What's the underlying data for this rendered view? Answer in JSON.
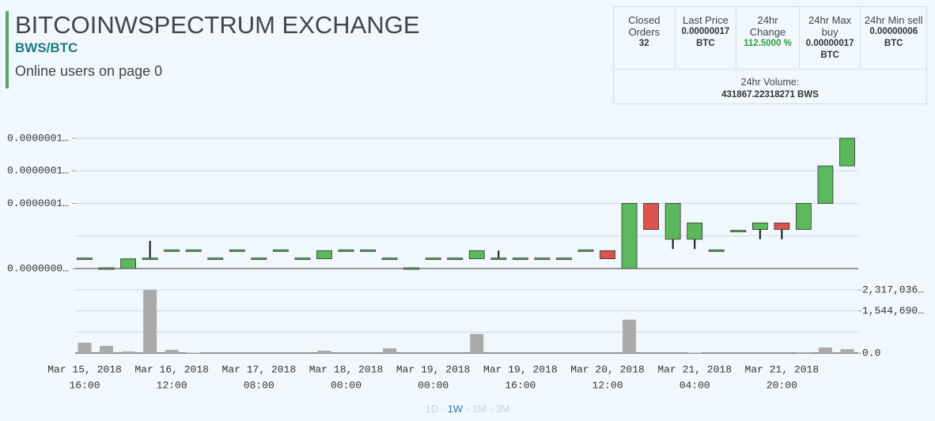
{
  "header": {
    "title": "BITCOINWSPECTRUM EXCHANGE",
    "pair": "BWS/BTC",
    "online": "Online users on page 0"
  },
  "stats": {
    "cells": [
      {
        "label": "Closed Orders",
        "value": "32"
      },
      {
        "label": "Last Price",
        "value": "0.00000017 BTC"
      },
      {
        "label": "24hr Change",
        "value": "112.5000 %"
      },
      {
        "label": "24hr Max buy",
        "value": "0.00000017 BTC"
      },
      {
        "label": "24hr Min sell",
        "value": "0.00000006 BTC"
      }
    ],
    "volume_label": "24hr Volume:",
    "volume_value": "431867.22318271 BWS"
  },
  "chart_data": {
    "type": "candlestick",
    "categories": [
      {
        "date": "Mar 15, 2018",
        "time": "16:00"
      },
      null,
      null,
      null,
      {
        "date": "Mar 16, 2018",
        "time": "12:00"
      },
      null,
      null,
      null,
      {
        "date": "Mar 17, 2018",
        "time": "08:00"
      },
      null,
      null,
      null,
      {
        "date": "Mar 18, 2018",
        "time": "00:00"
      },
      null,
      null,
      null,
      {
        "date": "Mar 19, 2018",
        "time": "00:00"
      },
      null,
      null,
      null,
      {
        "date": "Mar 19, 2018",
        "time": "16:00"
      },
      null,
      null,
      null,
      {
        "date": "Mar 20, 2018",
        "time": "12:00"
      },
      null,
      null,
      null,
      {
        "date": "Mar 21, 2018",
        "time": "04:00"
      },
      null,
      null,
      null,
      {
        "date": "Mar 21, 2018",
        "time": "20:00"
      },
      null,
      null,
      null
    ],
    "candles": [
      {
        "open": 8.6e-08,
        "high": 8.6e-08,
        "low": 8.6e-08,
        "close": 8.6e-08
      },
      {
        "open": 8e-08,
        "high": 8e-08,
        "low": 8e-08,
        "close": 8e-08
      },
      {
        "open": 8e-08,
        "high": 8.6e-08,
        "low": 8e-08,
        "close": 8.6e-08
      },
      {
        "open": 8.6e-08,
        "high": 9.7e-08,
        "low": 8.6e-08,
        "close": 8.6e-08
      },
      {
        "open": 9.1e-08,
        "high": 9.1e-08,
        "low": 9.1e-08,
        "close": 9.1e-08
      },
      {
        "open": 9.1e-08,
        "high": 9.1e-08,
        "low": 9.1e-08,
        "close": 9.1e-08
      },
      {
        "open": 8.6e-08,
        "high": 8.6e-08,
        "low": 8.6e-08,
        "close": 8.6e-08
      },
      {
        "open": 9.1e-08,
        "high": 9.1e-08,
        "low": 9.1e-08,
        "close": 9.1e-08
      },
      {
        "open": 8.6e-08,
        "high": 8.6e-08,
        "low": 8.6e-08,
        "close": 8.6e-08
      },
      {
        "open": 9.1e-08,
        "high": 9.1e-08,
        "low": 9.1e-08,
        "close": 9.1e-08
      },
      {
        "open": 8.6e-08,
        "high": 8.6e-08,
        "low": 8.6e-08,
        "close": 8.6e-08
      },
      {
        "open": 8.6e-08,
        "high": 9.1e-08,
        "low": 8.6e-08,
        "close": 9.1e-08
      },
      {
        "open": 9.1e-08,
        "high": 9.1e-08,
        "low": 9.1e-08,
        "close": 9.1e-08
      },
      {
        "open": 9.1e-08,
        "high": 9.1e-08,
        "low": 9.1e-08,
        "close": 9.1e-08
      },
      {
        "open": 8.6e-08,
        "high": 8.6e-08,
        "low": 8.6e-08,
        "close": 8.6e-08
      },
      {
        "open": 8e-08,
        "high": 8e-08,
        "low": 8e-08,
        "close": 8e-08
      },
      {
        "open": 8.6e-08,
        "high": 8.6e-08,
        "low": 8.6e-08,
        "close": 8.6e-08
      },
      {
        "open": 8.6e-08,
        "high": 8.6e-08,
        "low": 8.6e-08,
        "close": 8.6e-08
      },
      {
        "open": 8.6e-08,
        "high": 9.1e-08,
        "low": 8.6e-08,
        "close": 9.1e-08
      },
      {
        "open": 8.6e-08,
        "high": 9.1e-08,
        "low": 8.6e-08,
        "close": 8.6e-08
      },
      {
        "open": 8.6e-08,
        "high": 8.6e-08,
        "low": 8.6e-08,
        "close": 8.6e-08
      },
      {
        "open": 8.6e-08,
        "high": 8.6e-08,
        "low": 8.6e-08,
        "close": 8.6e-08
      },
      {
        "open": 8.6e-08,
        "high": 8.6e-08,
        "low": 8.6e-08,
        "close": 8.6e-08
      },
      {
        "open": 9.1e-08,
        "high": 9.1e-08,
        "low": 9.1e-08,
        "close": 9.1e-08
      },
      {
        "open": 9.1e-08,
        "high": 9.1e-08,
        "low": 8.6e-08,
        "close": 8.6e-08
      },
      {
        "open": 8e-08,
        "high": 1.2e-07,
        "low": 8e-08,
        "close": 1.2e-07
      },
      {
        "open": 1.2e-07,
        "high": 1.2e-07,
        "low": 1.04e-07,
        "close": 1.04e-07
      },
      {
        "open": 9.8e-08,
        "high": 1.2e-07,
        "low": 9.2e-08,
        "close": 1.2e-07
      },
      {
        "open": 9.8e-08,
        "high": 1.08e-07,
        "low": 9.2e-08,
        "close": 1.08e-07
      },
      {
        "open": 9.1e-08,
        "high": 9.1e-08,
        "low": 9.1e-08,
        "close": 9.1e-08
      },
      {
        "open": 1.03e-07,
        "high": 1.03e-07,
        "low": 1.03e-07,
        "close": 1.03e-07
      },
      {
        "open": 1.04e-07,
        "high": 1.08e-07,
        "low": 9.8e-08,
        "close": 1.08e-07
      },
      {
        "open": 1.08e-07,
        "high": 1.08e-07,
        "low": 9.8e-08,
        "close": 1.04e-07
      },
      {
        "open": 1.04e-07,
        "high": 1.2e-07,
        "low": 1.04e-07,
        "close": 1.2e-07
      },
      {
        "open": 1.2e-07,
        "high": 1.43e-07,
        "low": 1.2e-07,
        "close": 1.43e-07
      },
      {
        "open": 1.43e-07,
        "high": 1.6e-07,
        "low": 1.43e-07,
        "close": 1.6e-07
      }
    ],
    "volumes": [
      379000,
      262000,
      58000,
      2320000,
      117000,
      15000,
      0,
      0,
      0,
      0,
      0,
      87000,
      0,
      0,
      175000,
      0,
      0,
      0,
      700000,
      0,
      0,
      0,
      0,
      0,
      0,
      1224000,
      0,
      0,
      15000,
      0,
      0,
      0,
      0,
      29000,
      204000,
      146000
    ],
    "up_color": "#5cb85c",
    "down_color": "#d9534f",
    "volume_color": "#aaaaaa",
    "ylim": [
      8e-08,
      1.6e-07
    ],
    "yticks": [
      {
        "value": 8e-08,
        "label": "0.0000000…"
      },
      {
        "value": 1.2e-07,
        "label": "0.0000001…"
      },
      {
        "value": 1.4e-07,
        "label": "0.0000001…"
      },
      {
        "value": 1.6e-07,
        "label": "0.0000001…"
      }
    ],
    "ygrid": [
      8e-08,
      1e-07,
      1.2e-07,
      1.4e-07,
      1.6e-07
    ],
    "y2lim": [
      0,
      2317036
    ],
    "y2ticks": [
      {
        "value": 0,
        "label": "0.0"
      },
      {
        "value": 1544690,
        "label": "1,544,690…"
      },
      {
        "value": 2317036,
        "label": "2,317,036…"
      }
    ],
    "y2grid": [
      0,
      772345,
      1544690,
      2317036
    ]
  },
  "ranges": {
    "items": [
      "1D",
      "1W",
      "1M",
      "3M"
    ],
    "separator": "-",
    "active": "1W"
  }
}
